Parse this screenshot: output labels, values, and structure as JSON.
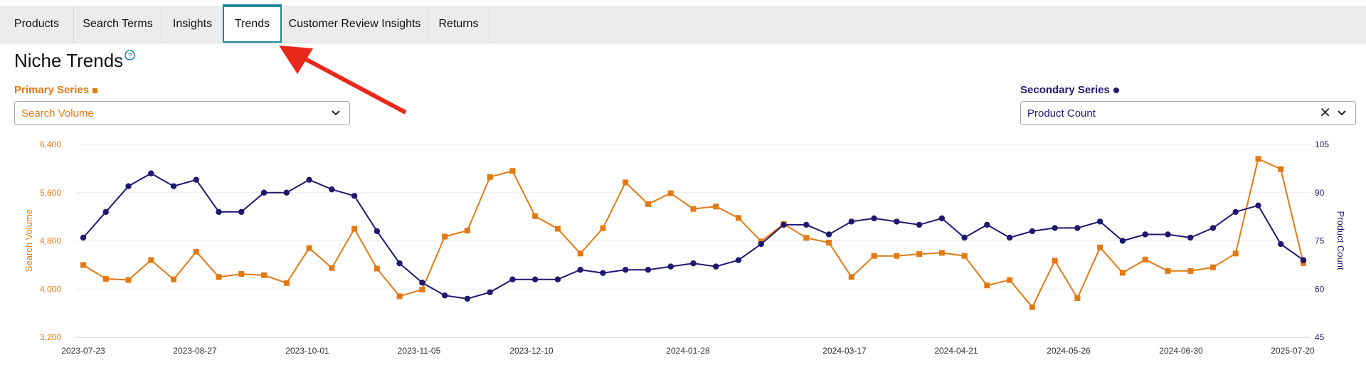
{
  "tabs": [
    {
      "label": "Products",
      "active": false
    },
    {
      "label": "Search Terms",
      "active": false
    },
    {
      "label": "Insights",
      "active": false
    },
    {
      "label": "Trends",
      "active": true
    },
    {
      "label": "Customer Review Insights",
      "active": false
    },
    {
      "label": "Returns",
      "active": false
    }
  ],
  "page": {
    "title": "Niche Trends",
    "help_icon": "question-circle-icon"
  },
  "primary": {
    "label": "Primary Series",
    "value": "Search Volume",
    "color": "#e47911"
  },
  "secondary": {
    "label": "Secondary Series",
    "value": "Product Count",
    "clear": "✕",
    "color": "#1f1870"
  },
  "chart_data": {
    "type": "line",
    "x_tick_labels": [
      "2023-07-23",
      "2023-08-27",
      "2023-10-01",
      "2023-11-05",
      "2023-12-10",
      "2024-01-28",
      "2024-03-17",
      "2024-04-21",
      "2024-05-26",
      "2024-06-30",
      "2025-07-20"
    ],
    "ylabel": "Search Volume",
    "y2label": "Product Count",
    "yticks": [
      "3,200",
      "4,000",
      "4,800",
      "5,600",
      "6,400"
    ],
    "y2ticks": [
      "45",
      "60",
      "75",
      "90",
      "105"
    ],
    "ylim": [
      3200,
      6400
    ],
    "y2lim": [
      45,
      105
    ],
    "grid": true,
    "series": [
      {
        "name": "Search Volume",
        "axis": "left",
        "marker": "square",
        "color": "#e47911",
        "values": [
          4400,
          4170,
          4150,
          4480,
          4160,
          4620,
          4200,
          4250,
          4230,
          4100,
          4680,
          4350,
          5000,
          4340,
          3880,
          3990,
          4870,
          4970,
          5860,
          5960,
          5210,
          5000,
          4590,
          5010,
          5770,
          5410,
          5590,
          5330,
          5370,
          5180,
          4790,
          5080,
          4850,
          4770,
          4200,
          4550,
          4550,
          4580,
          4600,
          4550,
          4060,
          4150,
          3700,
          4470,
          3850,
          4690,
          4270,
          4490,
          4300,
          4300,
          4360,
          4590,
          6160,
          5990,
          4430
        ]
      },
      {
        "name": "Product Count",
        "axis": "right",
        "marker": "circle",
        "color": "#1f1870",
        "values": [
          76,
          84,
          92,
          96,
          92,
          94,
          84,
          84,
          90,
          90,
          94,
          91,
          89,
          78,
          68,
          62,
          58,
          57,
          59,
          63,
          63,
          63,
          66,
          65,
          66,
          66,
          67,
          68,
          67,
          69,
          74,
          80,
          80,
          77,
          81,
          82,
          81,
          80,
          82,
          76,
          80,
          76,
          78,
          79,
          79,
          81,
          75,
          77,
          77,
          76,
          79,
          84,
          86,
          74,
          69
        ]
      }
    ]
  }
}
